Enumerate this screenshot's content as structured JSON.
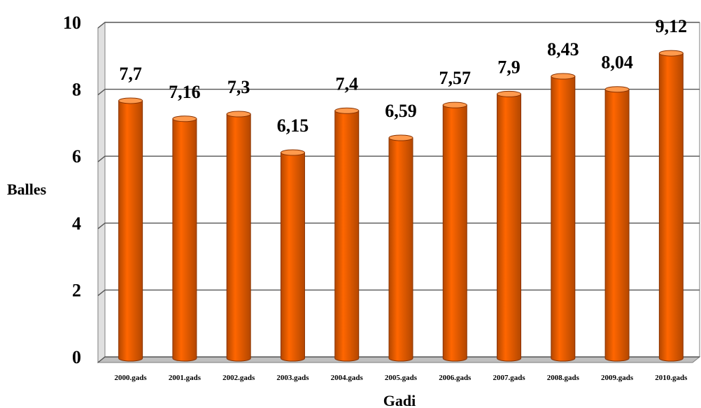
{
  "chart_data": {
    "type": "bar",
    "categories": [
      "2000.gads",
      "2001.gads",
      "2002.gads",
      "2003.gads",
      "2004.gads",
      "2005.gads",
      "2006.gads",
      "2007.gads",
      "2008.gads",
      "2009.gads",
      "2010.gads"
    ],
    "values": [
      7.7,
      7.16,
      7.3,
      6.15,
      7.4,
      6.59,
      7.57,
      7.9,
      8.43,
      8.04,
      9.12
    ],
    "data_labels": [
      "7,7",
      "7,16",
      "7,3",
      "6,15",
      "7,4",
      "6,59",
      "7,57",
      "7,9",
      "8,43",
      "8,04",
      "9,12"
    ],
    "y_ticks": [
      "0",
      "2",
      "4",
      "6",
      "8",
      "10"
    ],
    "xlabel": "Gadi",
    "ylabel": "Balles",
    "ylim": [
      0,
      10
    ],
    "grid": true,
    "bar_color": "#FF6600",
    "bar_dark": "#B34700",
    "bar_light": "#FF9A4D",
    "legend": "none"
  }
}
